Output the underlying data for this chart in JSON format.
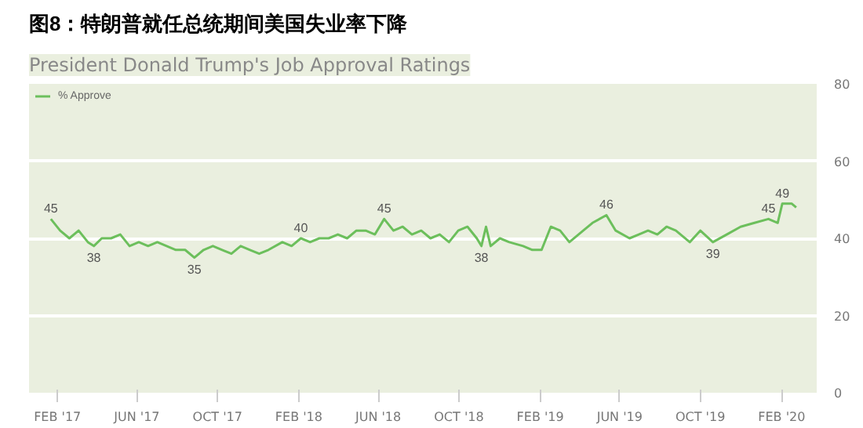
{
  "chart_data": {
    "type": "line",
    "title": "图8：特朗普就任总统期间美国失业率下降",
    "subtitle": "President Donald Trump's Job Approval Ratings",
    "x": [
      "2017-01-22",
      "2017-02-05",
      "2017-02-19",
      "2017-03-05",
      "2017-03-19",
      "2017-03-28",
      "2017-04-09",
      "2017-04-23",
      "2017-05-07",
      "2017-05-21",
      "2017-06-04",
      "2017-06-18",
      "2017-07-02",
      "2017-07-16",
      "2017-07-30",
      "2017-08-13",
      "2017-08-27",
      "2017-09-10",
      "2017-09-24",
      "2017-10-08",
      "2017-10-22",
      "2017-11-05",
      "2017-11-19",
      "2017-12-03",
      "2017-12-17",
      "2018-01-07",
      "2018-01-21",
      "2018-02-04",
      "2018-02-18",
      "2018-03-04",
      "2018-03-18",
      "2018-04-01",
      "2018-04-15",
      "2018-04-29",
      "2018-05-13",
      "2018-05-27",
      "2018-06-10",
      "2018-06-24",
      "2018-07-08",
      "2018-07-22",
      "2018-08-05",
      "2018-08-19",
      "2018-09-02",
      "2018-09-16",
      "2018-09-30",
      "2018-10-14",
      "2018-10-28",
      "2018-11-04",
      "2018-11-11",
      "2018-11-18",
      "2018-12-02",
      "2018-12-16",
      "2019-01-06",
      "2019-01-20",
      "2019-02-03",
      "2019-02-17",
      "2019-03-03",
      "2019-03-17",
      "2019-04-07",
      "2019-04-21",
      "2019-05-12",
      "2019-05-26",
      "2019-06-16",
      "2019-06-30",
      "2019-07-14",
      "2019-07-28",
      "2019-08-11",
      "2019-08-25",
      "2019-09-15",
      "2019-10-01",
      "2019-10-20",
      "2019-11-10",
      "2019-12-01",
      "2019-12-22",
      "2020-01-12",
      "2020-01-26",
      "2020-02-02",
      "2020-02-16",
      "2020-02-23"
    ],
    "series": [
      {
        "name": "% Approve",
        "color": "#6cbf5c",
        "values": [
          45,
          42,
          40,
          42,
          39,
          38,
          40,
          40,
          41,
          38,
          39,
          38,
          39,
          38,
          37,
          37,
          35,
          37,
          38,
          37,
          36,
          38,
          37,
          36,
          37,
          39,
          38,
          40,
          39,
          40,
          40,
          41,
          40,
          42,
          42,
          41,
          45,
          42,
          43,
          41,
          42,
          40,
          41,
          39,
          42,
          43,
          40,
          38,
          43,
          38,
          40,
          39,
          38,
          37,
          37,
          43,
          42,
          39,
          42,
          44,
          46,
          42,
          40,
          41,
          42,
          41,
          43,
          42,
          39,
          42,
          39,
          41,
          43,
          44,
          45,
          44,
          49,
          49,
          48
        ]
      }
    ],
    "annotations": [
      {
        "text": "45",
        "x": "2017-01-22",
        "y": 45
      },
      {
        "text": "38",
        "x": "2017-03-28",
        "y": 38
      },
      {
        "text": "35",
        "x": "2017-08-27",
        "y": 35
      },
      {
        "text": "40",
        "x": "2018-02-04",
        "y": 40
      },
      {
        "text": "45",
        "x": "2018-06-10",
        "y": 45
      },
      {
        "text": "38",
        "x": "2018-11-04",
        "y": 38
      },
      {
        "text": "46",
        "x": "2019-05-12",
        "y": 46
      },
      {
        "text": "39",
        "x": "2019-10-20",
        "y": 39
      },
      {
        "text": "45",
        "x": "2020-01-12",
        "y": 45
      },
      {
        "text": "49",
        "x": "2020-02-02",
        "y": 49
      }
    ],
    "xlim": [
      "2016-12-20",
      "2020-03-25"
    ],
    "xticks": [
      {
        "value": "2017-02-01",
        "label": "FEB '17"
      },
      {
        "value": "2017-06-01",
        "label": "JUN '17"
      },
      {
        "value": "2017-10-01",
        "label": "OCT '17"
      },
      {
        "value": "2018-02-01",
        "label": "FEB '18"
      },
      {
        "value": "2018-06-01",
        "label": "JUN '18"
      },
      {
        "value": "2018-10-01",
        "label": "OCT '18"
      },
      {
        "value": "2019-02-01",
        "label": "FEB '19"
      },
      {
        "value": "2019-06-01",
        "label": "JUN '19"
      },
      {
        "value": "2019-10-01",
        "label": "OCT '19"
      },
      {
        "value": "2020-02-01",
        "label": "FEB '20"
      }
    ],
    "ylim": [
      0,
      80
    ],
    "yticks": [
      0,
      20,
      40,
      60,
      80
    ],
    "grid": "y",
    "legend": "top left",
    "marker": "none",
    "line_style": "solid"
  }
}
